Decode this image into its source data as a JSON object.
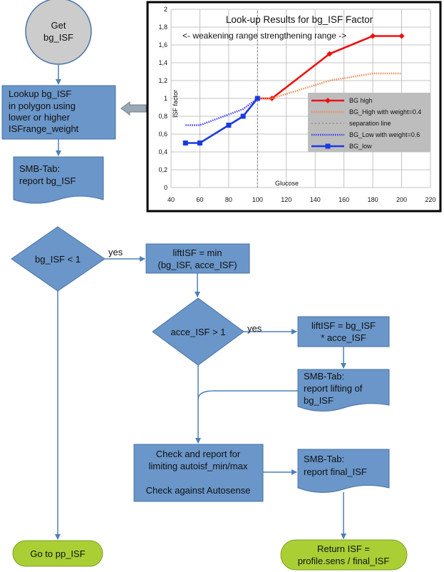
{
  "nodes": {
    "get_bg_isf": [
      "Get",
      "bg_ISF"
    ],
    "lookup": [
      "Lookup bg_ISF",
      "in polygon using",
      "lower or higher",
      "ISFrange_weight"
    ],
    "report_bg": [
      "SMB-Tab:",
      "report bg_ISF"
    ],
    "decision1": "bg_ISF < 1",
    "lift_min": [
      "liftISF = min",
      "(bg_ISF, acce_ISF)"
    ],
    "decision2": "acce_ISF > 1",
    "lift_mult": [
      "liftISF = bg_ISF",
      "* acce_ISF"
    ],
    "report_lift": [
      "SMB-Tab:",
      "report lifting of",
      "bg_ISF"
    ],
    "check": [
      "Check and report for",
      "limiting autoisf_min/max",
      "",
      "Check against Autosense"
    ],
    "report_final": [
      "SMB-Tab:",
      "report final_ISF"
    ],
    "goto_pp": "Go to pp_ISF",
    "return": [
      "Return ISF =",
      "profile.sens / final_ISF"
    ]
  },
  "edges": {
    "yes1": "yes",
    "yes2": "yes"
  },
  "colors": {
    "box": "#6a96c9",
    "box_stroke": "#4a72a6",
    "terminal": "#a9cf35",
    "start": "#cccccc",
    "connector": "#4f7fb5"
  },
  "chart_data": {
    "type": "line",
    "title": "Look-up Results for bg_ISF Factor",
    "annotation": "<- weakening range strengthening range ->",
    "xlabel": "Glucose",
    "ylabel": "ISF factor",
    "xlim": [
      40,
      220
    ],
    "ylim": [
      0,
      2
    ],
    "xticks": [
      40,
      60,
      80,
      100,
      120,
      140,
      160,
      180,
      200,
      220
    ],
    "yticks": [
      "0",
      "0,2",
      "0,4",
      "0,6",
      "0,8",
      "1",
      "1,2",
      "1,4",
      "1,6",
      "1,8",
      "2"
    ],
    "grid": true,
    "legend_position": "right",
    "series": [
      {
        "name": "BG high",
        "color": "#ee1111",
        "style": "solid-diamond",
        "x": [
          100,
          110,
          150,
          180,
          200
        ],
        "y": [
          1.0,
          1.0,
          1.5,
          1.7,
          1.7
        ]
      },
      {
        "name": "BG_High with weight=0.4",
        "color": "#f08a5a",
        "style": "dotted",
        "x": [
          100,
          110,
          150,
          180,
          200
        ],
        "y": [
          1.0,
          1.0,
          1.2,
          1.28,
          1.28
        ]
      },
      {
        "name": "separation line",
        "color": "#888888",
        "style": "vline",
        "x": [
          100,
          100
        ],
        "y": [
          0,
          2
        ]
      },
      {
        "name": "BG_Low with weight=0.6",
        "color": "#3a3af0",
        "style": "dotted",
        "x": [
          50,
          60,
          80,
          90,
          100
        ],
        "y": [
          0.7,
          0.7,
          0.82,
          0.88,
          1.0
        ]
      },
      {
        "name": "BG_low",
        "color": "#1a3ae0",
        "style": "solid-square",
        "x": [
          50,
          60,
          80,
          90,
          100
        ],
        "y": [
          0.5,
          0.5,
          0.7,
          0.8,
          1.0
        ]
      }
    ]
  }
}
